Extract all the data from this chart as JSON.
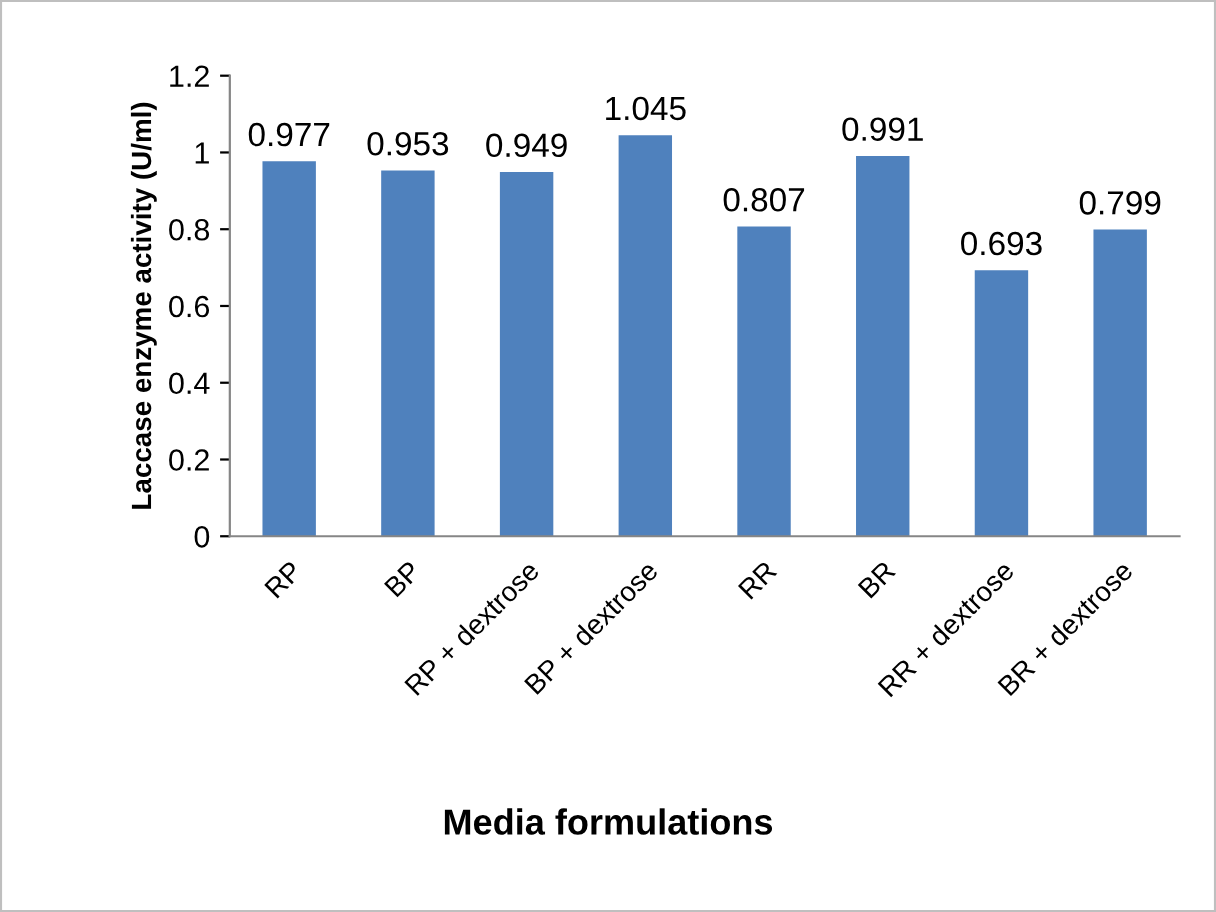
{
  "chart_data": {
    "type": "bar",
    "xlabel": "Media formulations",
    "ylabel": "Laccase enzyme activity (U/ml)",
    "categories": [
      "RP",
      "BP",
      "RP + dextrose",
      "BP + dextrose",
      "RR",
      "BR",
      "RR + dextrose",
      "BR + dextrose"
    ],
    "values": [
      0.977,
      0.953,
      0.949,
      1.045,
      0.807,
      0.991,
      0.693,
      0.799
    ],
    "color": "#4f81bd",
    "ylim": [
      0,
      1.2
    ],
    "yticks": [
      0,
      0.2,
      0.4,
      0.6,
      0.8,
      1,
      1.2
    ],
    "data_labels": true,
    "grid": false,
    "legend": false
  }
}
